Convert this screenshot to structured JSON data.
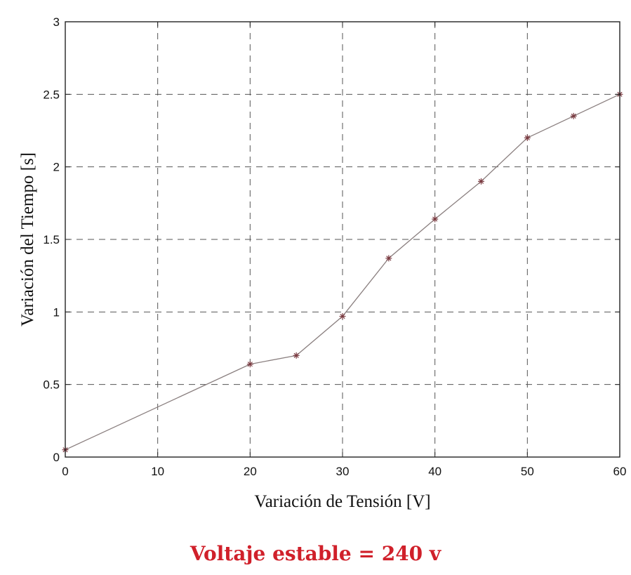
{
  "chart_data": {
    "type": "line",
    "title": "",
    "xlabel": "Variación de Tensión [V]",
    "ylabel": "Variación del Tiempo [s]",
    "xlim": [
      0,
      60
    ],
    "ylim": [
      0,
      3
    ],
    "xticks": [
      0,
      10,
      20,
      30,
      40,
      50,
      60
    ],
    "yticks": [
      0,
      0.5,
      1,
      1.5,
      2,
      2.5,
      3
    ],
    "xtick_labels": [
      "0",
      "10",
      "20",
      "30",
      "40",
      "50",
      "60"
    ],
    "ytick_labels": [
      "0",
      "0.5",
      "1",
      "1.5",
      "2",
      "2.5",
      "3"
    ],
    "grid": true,
    "grid_style": "dashed",
    "marker": "star",
    "line_color": "#8a7f7f",
    "marker_color": "#7a3a40",
    "series": [
      {
        "x": [
          0,
          20,
          25,
          30,
          35,
          40,
          45,
          50,
          55,
          60
        ],
        "y": [
          0.05,
          0.64,
          0.7,
          0.97,
          1.37,
          1.64,
          1.9,
          2.2,
          2.35,
          2.5
        ]
      }
    ]
  },
  "caption": {
    "text": "Voltaje estable = 240 v",
    "color": "#d0202a"
  }
}
